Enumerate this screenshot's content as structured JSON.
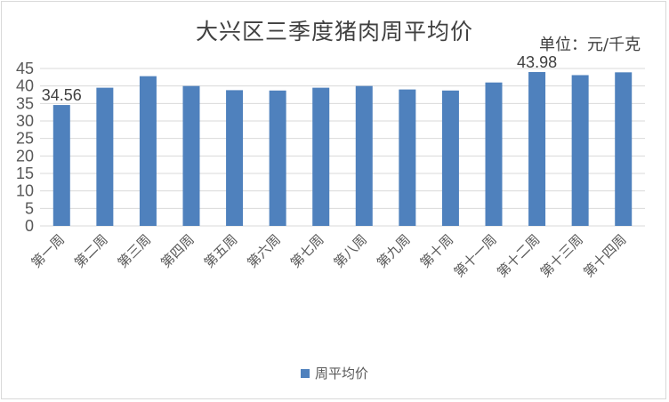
{
  "chart_data": {
    "type": "bar",
    "title": "大兴区三季度猪肉周平均价",
    "unit_label": "单位：元/千克",
    "categories": [
      "第一周",
      "第二周",
      "第三周",
      "第四周",
      "第五周",
      "第六周",
      "第七周",
      "第八周",
      "第九周",
      "第十周",
      "第十一周",
      "第十二周",
      "第十三周",
      "第十四周"
    ],
    "series": [
      {
        "name": "周平均价",
        "values": [
          34.56,
          39.5,
          42.8,
          40.0,
          38.8,
          38.7,
          39.5,
          40.0,
          39.0,
          38.7,
          41.0,
          43.98,
          43.1,
          43.9
        ]
      }
    ],
    "data_labels": [
      {
        "index": 0,
        "text": "34.56"
      },
      {
        "index": 11,
        "text": "43.98"
      }
    ],
    "ylim": [
      0,
      45
    ],
    "yticks": [
      0,
      5,
      10,
      15,
      20,
      25,
      30,
      35,
      40,
      45
    ],
    "grid": true,
    "legend_position": "bottom",
    "colors": {
      "bar": "#4f81bd",
      "grid": "#d9d9d9",
      "text": "#595959"
    }
  }
}
